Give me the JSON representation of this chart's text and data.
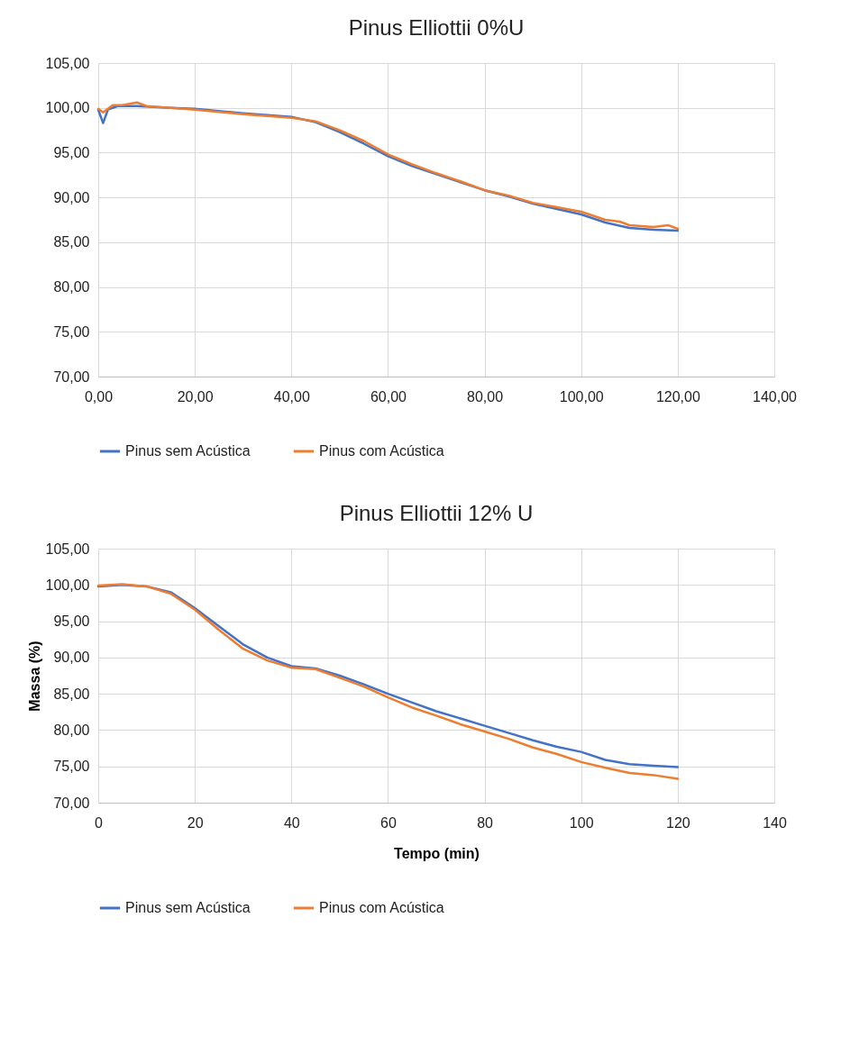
{
  "chart_data": [
    {
      "type": "line",
      "title": "Pinus Elliottii 0%U",
      "legend": "bottom",
      "grid": true,
      "xlim": [
        0,
        140
      ],
      "xticks": [
        {
          "value": 0,
          "label": "0,00"
        },
        {
          "value": 20,
          "label": "20,00"
        },
        {
          "value": 40,
          "label": "40,00"
        },
        {
          "value": 60,
          "label": "60,00"
        },
        {
          "value": 80,
          "label": "80,00"
        },
        {
          "value": 100,
          "label": "100,00"
        },
        {
          "value": 120,
          "label": "120,00"
        },
        {
          "value": 140,
          "label": "140,00"
        }
      ],
      "ylim": [
        70,
        105
      ],
      "yticks": [
        {
          "value": 70,
          "label": "70,00"
        },
        {
          "value": 75,
          "label": "75,00"
        },
        {
          "value": 80,
          "label": "80,00"
        },
        {
          "value": 85,
          "label": "85,00"
        },
        {
          "value": 90,
          "label": "90,00"
        },
        {
          "value": 95,
          "label": "95,00"
        },
        {
          "value": 100,
          "label": "100,00"
        },
        {
          "value": 105,
          "label": "105,00"
        }
      ],
      "series": [
        {
          "name": "Pinus sem Acústica",
          "color": "#4472c4",
          "x": [
            0,
            1,
            2,
            4,
            8,
            15,
            20,
            30,
            40,
            45,
            50,
            55,
            60,
            65,
            70,
            75,
            80,
            85,
            90,
            95,
            100,
            105,
            110,
            115,
            120
          ],
          "values": [
            99.8,
            98.3,
            99.8,
            100.2,
            100.2,
            100.0,
            99.9,
            99.4,
            99.0,
            98.4,
            97.3,
            96.0,
            94.6,
            93.5,
            92.6,
            91.7,
            90.8,
            90.1,
            89.3,
            88.7,
            88.1,
            87.2,
            86.6,
            86.4,
            86.3
          ]
        },
        {
          "name": "Pinus com Acústica",
          "color": "#ed7d31",
          "x": [
            0,
            1,
            3,
            5,
            8,
            10,
            20,
            30,
            40,
            45,
            50,
            55,
            60,
            65,
            70,
            75,
            80,
            85,
            90,
            95,
            100,
            105,
            108,
            110,
            115,
            118,
            120
          ],
          "values": [
            99.9,
            99.5,
            100.3,
            100.3,
            100.6,
            100.2,
            99.8,
            99.3,
            98.9,
            98.5,
            97.5,
            96.3,
            94.8,
            93.7,
            92.7,
            91.8,
            90.8,
            90.2,
            89.4,
            88.9,
            88.4,
            87.5,
            87.3,
            86.9,
            86.7,
            86.9,
            86.5
          ]
        }
      ]
    },
    {
      "type": "line",
      "title": "Pinus Elliottii 12% U",
      "xlabel": "Tempo (min)",
      "ylabel": "Massa (%)",
      "legend": "bottom",
      "grid": true,
      "xlim": [
        0,
        140
      ],
      "xticks": [
        0,
        20,
        40,
        60,
        80,
        100,
        120,
        140
      ],
      "ylim": [
        70,
        105
      ],
      "yticks": [
        {
          "value": 70,
          "label": "70,00"
        },
        {
          "value": 75,
          "label": "75,00"
        },
        {
          "value": 80,
          "label": "80,00"
        },
        {
          "value": 85,
          "label": "85,00"
        },
        {
          "value": 90,
          "label": "90,00"
        },
        {
          "value": 95,
          "label": "95,00"
        },
        {
          "value": 100,
          "label": "100,00"
        },
        {
          "value": 105,
          "label": "105,00"
        }
      ],
      "series": [
        {
          "name": "Pinus sem Acústica",
          "color": "#4472c4",
          "x": [
            0,
            5,
            10,
            15,
            20,
            25,
            30,
            35,
            40,
            45,
            50,
            55,
            60,
            65,
            70,
            75,
            80,
            85,
            90,
            95,
            100,
            105,
            110,
            115,
            120
          ],
          "values": [
            99.8,
            100.0,
            99.8,
            99.0,
            96.8,
            94.3,
            91.8,
            90.0,
            88.8,
            88.5,
            87.5,
            86.3,
            85.0,
            83.8,
            82.6,
            81.6,
            80.6,
            79.6,
            78.6,
            77.7,
            77.0,
            75.9,
            75.3,
            75.1,
            74.9
          ]
        },
        {
          "name": "Pinus com Acústica",
          "color": "#ed7d31",
          "x": [
            0,
            5,
            10,
            15,
            20,
            25,
            30,
            35,
            40,
            45,
            50,
            55,
            60,
            65,
            70,
            75,
            80,
            85,
            90,
            95,
            100,
            105,
            110,
            115,
            120
          ],
          "values": [
            99.9,
            100.1,
            99.8,
            98.8,
            96.6,
            93.8,
            91.2,
            89.6,
            88.6,
            88.4,
            87.2,
            86.0,
            84.5,
            83.1,
            82.0,
            80.8,
            79.8,
            78.8,
            77.6,
            76.7,
            75.6,
            74.8,
            74.1,
            73.8,
            73.3
          ]
        }
      ]
    }
  ]
}
